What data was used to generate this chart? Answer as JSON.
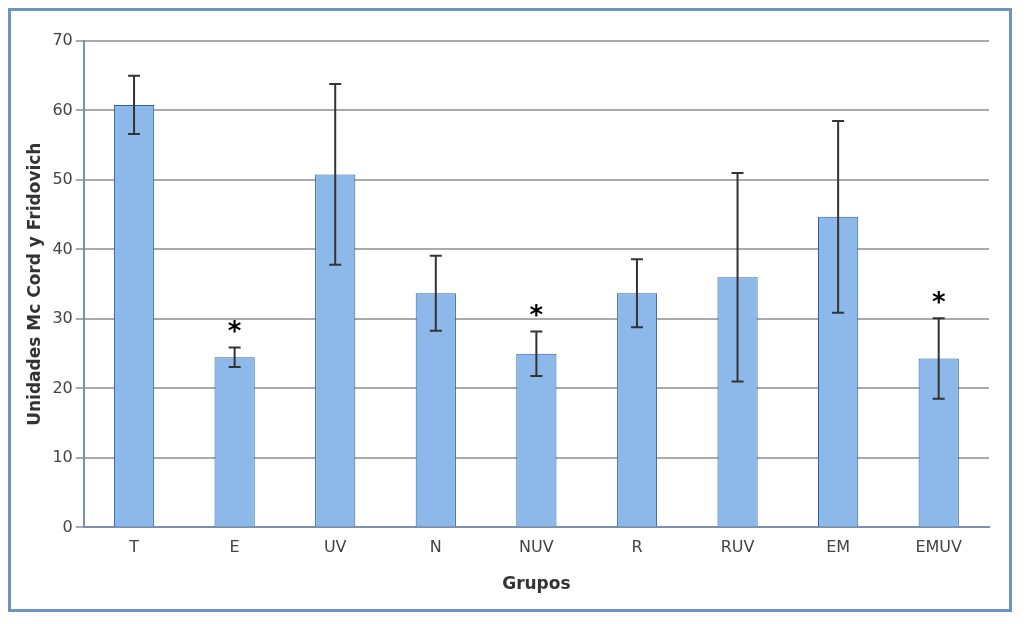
{
  "chart_data": {
    "type": "bar",
    "xlabel": "Grupos",
    "ylabel": "Unidades Mc Cord y Fridovich",
    "categories": [
      "T",
      "E",
      "UV",
      "N",
      "NUV",
      "R",
      "RUV",
      "EM",
      "EMUV"
    ],
    "values": [
      60.8,
      24.5,
      50.8,
      33.7,
      25,
      33.7,
      36,
      44.7,
      24.3
    ],
    "errors": [
      4.2,
      1.4,
      13,
      5.4,
      3.2,
      4.9,
      15,
      13.8,
      5.8
    ],
    "color": "#8db8ea",
    "ylim": [
      0,
      70
    ],
    "yticks": [
      0,
      10,
      20,
      30,
      40,
      50,
      60,
      70
    ],
    "grid": "y",
    "legend": false,
    "annotations": [
      {
        "text": "*",
        "x": "E",
        "y": 24.5
      },
      {
        "text": "*",
        "x": "NUV",
        "y": 25
      },
      {
        "text": "*",
        "x": "EMUV",
        "y": 24.3
      }
    ]
  }
}
